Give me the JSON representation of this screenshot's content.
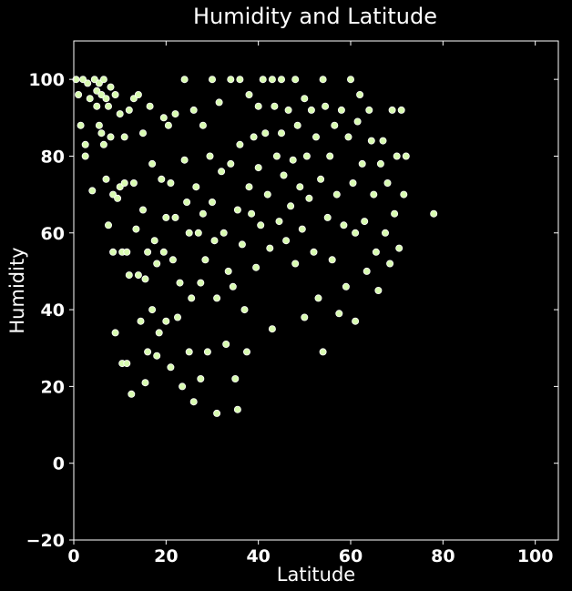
{
  "chart_data": {
    "type": "scatter",
    "title": "Humidity and Latitude",
    "xlabel": "Latitude",
    "ylabel": "Humidity",
    "xlim": [
      0,
      105
    ],
    "ylim": [
      -20,
      110
    ],
    "x_ticks": [
      "0",
      "20",
      "40",
      "60",
      "80",
      "100"
    ],
    "y_ticks": [
      "−20",
      "0",
      "20",
      "40",
      "60",
      "80",
      "100"
    ],
    "grid": false,
    "legend": "none",
    "background_color": "#000000",
    "text_color": "#ffffff",
    "marker_color": "#d8fbb0",
    "marker_edge_color": "#ffffff",
    "points": [
      [
        0.5,
        100
      ],
      [
        1,
        96
      ],
      [
        1.5,
        88
      ],
      [
        2,
        100
      ],
      [
        2.5,
        83
      ],
      [
        2.5,
        80
      ],
      [
        3,
        99
      ],
      [
        3.5,
        95
      ],
      [
        4,
        71
      ],
      [
        4.5,
        100
      ],
      [
        5,
        97
      ],
      [
        5,
        93
      ],
      [
        5.5,
        99
      ],
      [
        5.5,
        88
      ],
      [
        6,
        96
      ],
      [
        6,
        86
      ],
      [
        6.5,
        100
      ],
      [
        6.5,
        83
      ],
      [
        7,
        95
      ],
      [
        7,
        74
      ],
      [
        7.5,
        93
      ],
      [
        7.5,
        62
      ],
      [
        8,
        98
      ],
      [
        8,
        85
      ],
      [
        8.5,
        70
      ],
      [
        8.5,
        55
      ],
      [
        9,
        96
      ],
      [
        9,
        34
      ],
      [
        9.5,
        69
      ],
      [
        10,
        91
      ],
      [
        10,
        72
      ],
      [
        10.5,
        55
      ],
      [
        10.5,
        26
      ],
      [
        11,
        85
      ],
      [
        11,
        73
      ],
      [
        11.5,
        55
      ],
      [
        11.5,
        26
      ],
      [
        12,
        92
      ],
      [
        12,
        49
      ],
      [
        12.5,
        18
      ],
      [
        13,
        95
      ],
      [
        13,
        73
      ],
      [
        13.5,
        61
      ],
      [
        14,
        96
      ],
      [
        14,
        49
      ],
      [
        14.5,
        37
      ],
      [
        15,
        86
      ],
      [
        15,
        66
      ],
      [
        15.5,
        48
      ],
      [
        15.5,
        21
      ],
      [
        16,
        55
      ],
      [
        16,
        29
      ],
      [
        16.5,
        93
      ],
      [
        17,
        78
      ],
      [
        17,
        40
      ],
      [
        17.5,
        58
      ],
      [
        18,
        52
      ],
      [
        18,
        28
      ],
      [
        18.5,
        34
      ],
      [
        19,
        74
      ],
      [
        19.5,
        90
      ],
      [
        19.5,
        55
      ],
      [
        20,
        64
      ],
      [
        20,
        37
      ],
      [
        20.5,
        88
      ],
      [
        21,
        73
      ],
      [
        21,
        25
      ],
      [
        21.5,
        53
      ],
      [
        22,
        91
      ],
      [
        22,
        64
      ],
      [
        22.5,
        38
      ],
      [
        23,
        47
      ],
      [
        23.5,
        20
      ],
      [
        24,
        100
      ],
      [
        24,
        79
      ],
      [
        24.5,
        68
      ],
      [
        25,
        60
      ],
      [
        25,
        29
      ],
      [
        25.5,
        43
      ],
      [
        26,
        92
      ],
      [
        26,
        16
      ],
      [
        26.5,
        72
      ],
      [
        27,
        60
      ],
      [
        27.5,
        47
      ],
      [
        27.5,
        22
      ],
      [
        28,
        88
      ],
      [
        28,
        65
      ],
      [
        28.5,
        53
      ],
      [
        29,
        29
      ],
      [
        29.5,
        80
      ],
      [
        30,
        100
      ],
      [
        30,
        68
      ],
      [
        30.5,
        58
      ],
      [
        31,
        43
      ],
      [
        31,
        13
      ],
      [
        31.5,
        94
      ],
      [
        32,
        76
      ],
      [
        32.5,
        60
      ],
      [
        33,
        31
      ],
      [
        33.5,
        50
      ],
      [
        34,
        100
      ],
      [
        34,
        78
      ],
      [
        34.5,
        46
      ],
      [
        35,
        22
      ],
      [
        35.5,
        66
      ],
      [
        35.5,
        14
      ],
      [
        36,
        100
      ],
      [
        36,
        83
      ],
      [
        36.5,
        57
      ],
      [
        37,
        40
      ],
      [
        37.5,
        29
      ],
      [
        38,
        96
      ],
      [
        38,
        72
      ],
      [
        38.5,
        65
      ],
      [
        39,
        85
      ],
      [
        39.5,
        51
      ],
      [
        40,
        93
      ],
      [
        40,
        77
      ],
      [
        40.5,
        62
      ],
      [
        41,
        100
      ],
      [
        41.5,
        86
      ],
      [
        42,
        70
      ],
      [
        42.5,
        56
      ],
      [
        43,
        100
      ],
      [
        43,
        35
      ],
      [
        43.5,
        93
      ],
      [
        44,
        80
      ],
      [
        44.5,
        63
      ],
      [
        45,
        100
      ],
      [
        45,
        86
      ],
      [
        45.5,
        75
      ],
      [
        46,
        58
      ],
      [
        46.5,
        92
      ],
      [
        47,
        67
      ],
      [
        47.5,
        79
      ],
      [
        48,
        52
      ],
      [
        48,
        100
      ],
      [
        48.5,
        88
      ],
      [
        49,
        72
      ],
      [
        49.5,
        61
      ],
      [
        50,
        95
      ],
      [
        50,
        38
      ],
      [
        50.5,
        80
      ],
      [
        51,
        69
      ],
      [
        51.5,
        92
      ],
      [
        52,
        55
      ],
      [
        52.5,
        85
      ],
      [
        53,
        43
      ],
      [
        53.5,
        74
      ],
      [
        54,
        100
      ],
      [
        54,
        29
      ],
      [
        54.5,
        93
      ],
      [
        55,
        64
      ],
      [
        55.5,
        80
      ],
      [
        56,
        53
      ],
      [
        56.5,
        88
      ],
      [
        57,
        70
      ],
      [
        57.5,
        39
      ],
      [
        58,
        92
      ],
      [
        58.5,
        62
      ],
      [
        59,
        46
      ],
      [
        59.5,
        85
      ],
      [
        60,
        100
      ],
      [
        60.5,
        73
      ],
      [
        61,
        60
      ],
      [
        61,
        37
      ],
      [
        61.5,
        89
      ],
      [
        62,
        96
      ],
      [
        62.5,
        78
      ],
      [
        63,
        63
      ],
      [
        63.5,
        50
      ],
      [
        64,
        92
      ],
      [
        64.5,
        84
      ],
      [
        65,
        70
      ],
      [
        65.5,
        55
      ],
      [
        66,
        45
      ],
      [
        66.5,
        78
      ],
      [
        67,
        84
      ],
      [
        67.5,
        60
      ],
      [
        68,
        73
      ],
      [
        68.5,
        52
      ],
      [
        69,
        92
      ],
      [
        69.5,
        65
      ],
      [
        70,
        80
      ],
      [
        70.5,
        56
      ],
      [
        71,
        92
      ],
      [
        71.5,
        70
      ],
      [
        72,
        80
      ],
      [
        78,
        65
      ]
    ]
  }
}
